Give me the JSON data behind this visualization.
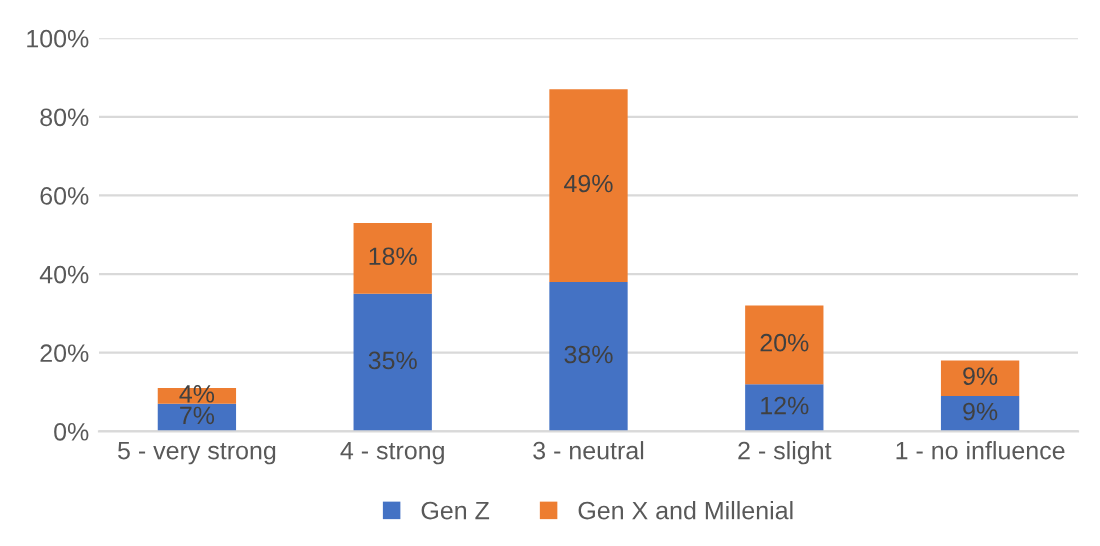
{
  "chart_data": {
    "type": "bar",
    "stacked": true,
    "categories": [
      "5 - very strong",
      "4 - strong",
      "3 - neutral",
      "2 - slight",
      "1 - no influence"
    ],
    "series": [
      {
        "name": "Gen Z",
        "color": "#4472c4",
        "values": [
          7,
          35,
          38,
          12,
          9
        ],
        "value_labels": [
          "7%",
          "35%",
          "38%",
          "12%",
          "9%"
        ]
      },
      {
        "name": "Gen X and Millenial",
        "color": "#ed7d31",
        "values": [
          4,
          18,
          49,
          20,
          9
        ],
        "value_labels": [
          "4%",
          "18%",
          "49%",
          "20%",
          "9%"
        ]
      }
    ],
    "ylim": [
      0,
      100
    ],
    "yticks": [
      {
        "value": 0,
        "label": "0%"
      },
      {
        "value": 20,
        "label": "20%"
      },
      {
        "value": 40,
        "label": "40%"
      },
      {
        "value": 60,
        "label": "60%"
      },
      {
        "value": 80,
        "label": "80%"
      },
      {
        "value": 100,
        "label": "100%"
      }
    ],
    "grid": "y",
    "legend": "bottom"
  }
}
